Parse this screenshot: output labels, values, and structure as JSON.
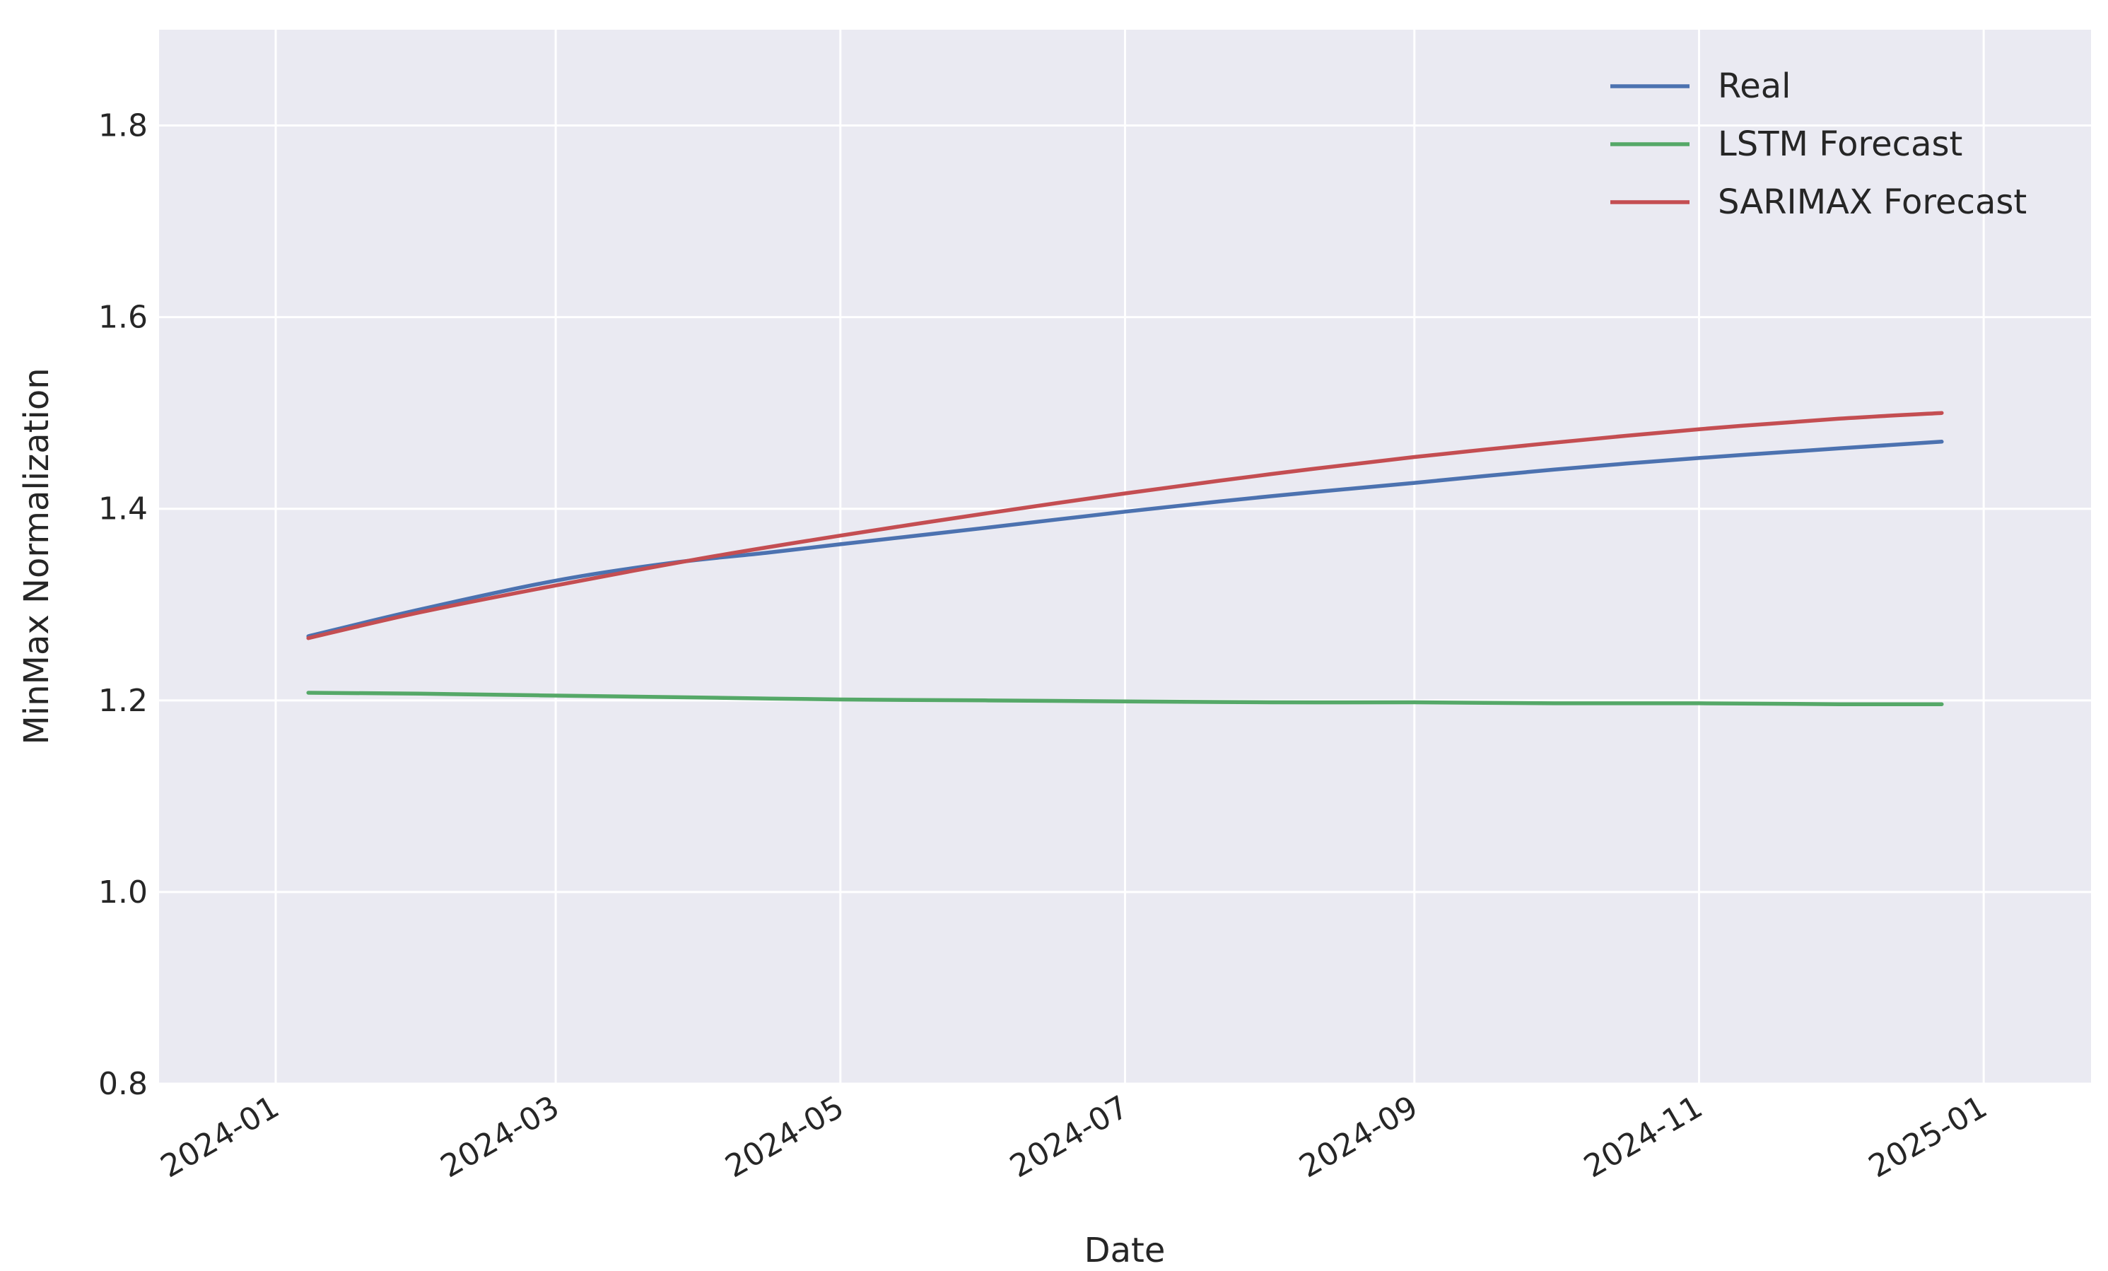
{
  "chart_data": {
    "type": "line",
    "title": "",
    "xlabel": "Date",
    "ylabel": "MinMax Normalization",
    "x_axis": {
      "type": "date",
      "range": [
        "2023-12-07",
        "2025-01-24"
      ],
      "ticks": [
        "2024-01-01",
        "2024-03-01",
        "2024-05-01",
        "2024-07-01",
        "2024-09-01",
        "2024-11-01",
        "2025-01-01"
      ],
      "tick_labels": [
        "2024-01",
        "2024-03",
        "2024-05",
        "2024-07",
        "2024-09",
        "2024-11",
        "2025-01"
      ]
    },
    "y_axis": {
      "range": [
        0.8,
        1.9
      ],
      "ticks": [
        0.8,
        1.0,
        1.2,
        1.4,
        1.6,
        1.8
      ],
      "tick_labels": [
        "0.8",
        "1.0",
        "1.2",
        "1.4",
        "1.6",
        "1.8"
      ]
    },
    "grid": true,
    "background": "#eaeaf2",
    "legend": {
      "position": "top-right"
    },
    "series": [
      {
        "name": "Real",
        "color": "#4c72b0",
        "x": [
          "2024-01-08",
          "2024-02-01",
          "2024-03-01",
          "2024-03-25",
          "2024-04-15",
          "2024-05-01",
          "2024-06-01",
          "2024-07-01",
          "2024-08-01",
          "2024-09-01",
          "2024-10-01",
          "2024-11-01",
          "2024-12-01",
          "2024-12-23"
        ],
        "values": [
          1.267,
          1.295,
          1.325,
          1.343,
          1.354,
          1.363,
          1.38,
          1.397,
          1.413,
          1.427,
          1.441,
          1.453,
          1.463,
          1.47
        ]
      },
      {
        "name": "LSTM Forecast",
        "color": "#55a868",
        "x": [
          "2024-01-08",
          "2024-02-01",
          "2024-03-01",
          "2024-04-01",
          "2024-05-01",
          "2024-06-01",
          "2024-07-01",
          "2024-08-01",
          "2024-09-01",
          "2024-10-01",
          "2024-11-01",
          "2024-12-01",
          "2024-12-23"
        ],
        "values": [
          1.208,
          1.207,
          1.205,
          1.203,
          1.201,
          1.2,
          1.199,
          1.198,
          1.198,
          1.197,
          1.197,
          1.196,
          1.196
        ]
      },
      {
        "name": "SARIMAX Forecast",
        "color": "#c44e52",
        "x": [
          "2024-01-08",
          "2024-02-01",
          "2024-03-01",
          "2024-04-01",
          "2024-05-01",
          "2024-06-01",
          "2024-07-01",
          "2024-08-01",
          "2024-09-01",
          "2024-10-01",
          "2024-11-01",
          "2024-12-01",
          "2024-12-23"
        ],
        "values": [
          1.265,
          1.292,
          1.32,
          1.348,
          1.372,
          1.395,
          1.416,
          1.436,
          1.454,
          1.469,
          1.483,
          1.494,
          1.5
        ]
      }
    ]
  }
}
